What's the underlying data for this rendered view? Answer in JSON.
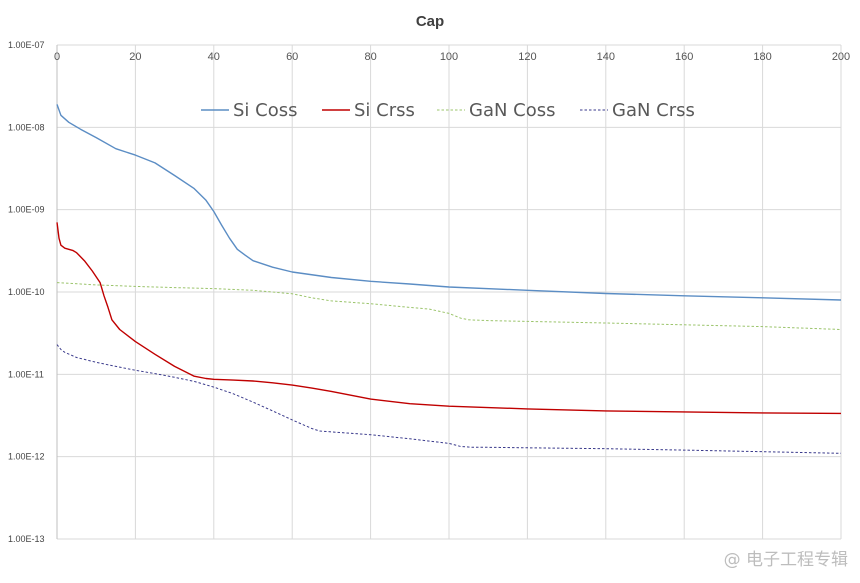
{
  "chart_data": {
    "type": "line",
    "title": "Cap",
    "xlabel": "",
    "ylabel": "",
    "xlim": [
      0,
      200
    ],
    "ylim": [
      1e-13,
      1e-07
    ],
    "log_y": true,
    "x_axis_position": "top",
    "grid": true,
    "legend_position": "top-inside",
    "x_ticks": [
      "0",
      "20",
      "40",
      "60",
      "80",
      "100",
      "120",
      "140",
      "160",
      "180",
      "200"
    ],
    "y_ticks": [
      "1.00E-07",
      "1.00E-08",
      "1.00E-09",
      "1.00E-10",
      "1.00E-11",
      "1.00E-12",
      "1.00E-13"
    ],
    "series": [
      {
        "name": "Si Coss",
        "color": "#5b8dc4",
        "dash": "solid",
        "x": [
          0,
          1,
          3,
          6,
          10,
          15,
          20,
          25,
          30,
          35,
          38,
          40,
          42,
          44,
          46,
          48,
          50,
          55,
          60,
          70,
          80,
          90,
          100,
          120,
          140,
          160,
          180,
          200
        ],
        "y": [
          1.9e-08,
          1.4e-08,
          1.15e-08,
          9.5e-09,
          7.5e-09,
          5.5e-09,
          4.6e-09,
          3.7e-09,
          2.6e-09,
          1.8e-09,
          1.3e-09,
          9.5e-10,
          6.5e-10,
          4.5e-10,
          3.3e-10,
          2.8e-10,
          2.4e-10,
          2e-10,
          1.75e-10,
          1.5e-10,
          1.35e-10,
          1.25e-10,
          1.15e-10,
          1.05e-10,
          9.6e-11,
          9e-11,
          8.5e-11,
          8e-11
        ]
      },
      {
        "name": "Si Crss",
        "color": "#c00000",
        "dash": "solid",
        "x": [
          0,
          0.5,
          1,
          2,
          4,
          5,
          7,
          9,
          11,
          12,
          13,
          14,
          16,
          20,
          25,
          30,
          35,
          38,
          40,
          45,
          50,
          55,
          60,
          65,
          70,
          80,
          90,
          100,
          120,
          140,
          160,
          180,
          200
        ],
        "y": [
          7e-10,
          4.5e-10,
          3.7e-10,
          3.4e-10,
          3.2e-10,
          3e-10,
          2.4e-10,
          1.8e-10,
          1.3e-10,
          9e-11,
          6.5e-11,
          4.6e-11,
          3.5e-11,
          2.5e-11,
          1.75e-11,
          1.25e-11,
          9.5e-12,
          8.9e-12,
          8.7e-12,
          8.5e-12,
          8.3e-12,
          7.9e-12,
          7.4e-12,
          6.8e-12,
          6.2e-12,
          5e-12,
          4.4e-12,
          4.1e-12,
          3.8e-12,
          3.6e-12,
          3.5e-12,
          3.4e-12,
          3.35e-12
        ]
      },
      {
        "name": "GaN Coss",
        "color": "#9bc46b",
        "dash": "dashed",
        "x": [
          0,
          10,
          20,
          30,
          40,
          50,
          60,
          65,
          70,
          80,
          90,
          95,
          100,
          103,
          105,
          110,
          120,
          140,
          160,
          180,
          200
        ],
        "y": [
          1.3e-10,
          1.22e-10,
          1.17e-10,
          1.13e-10,
          1.1e-10,
          1.05e-10,
          9.5e-11,
          8.5e-11,
          7.8e-11,
          7.2e-11,
          6.5e-11,
          6.2e-11,
          5.5e-11,
          4.8e-11,
          4.6e-11,
          4.5e-11,
          4.4e-11,
          4.2e-11,
          4e-11,
          3.8e-11,
          3.5e-11
        ]
      },
      {
        "name": "GaN Crss",
        "color": "#3a3a8c",
        "dash": "dashed",
        "x": [
          0,
          1,
          2,
          5,
          10,
          15,
          20,
          25,
          30,
          35,
          40,
          45,
          50,
          55,
          60,
          65,
          67,
          70,
          80,
          90,
          100,
          103,
          106,
          110,
          120,
          140,
          160,
          180,
          200
        ],
        "y": [
          2.3e-11,
          2e-11,
          1.85e-11,
          1.6e-11,
          1.4e-11,
          1.25e-11,
          1.12e-11,
          1.02e-11,
          9.2e-12,
          8.2e-12,
          7e-12,
          5.8e-12,
          4.6e-12,
          3.6e-12,
          2.8e-12,
          2.2e-12,
          2.05e-12,
          2e-12,
          1.85e-12,
          1.65e-12,
          1.45e-12,
          1.33e-12,
          1.3e-12,
          1.3e-12,
          1.28e-12,
          1.25e-12,
          1.2e-12,
          1.15e-12,
          1.1e-12
        ]
      }
    ]
  },
  "watermark": "@ 电子工程专辑"
}
